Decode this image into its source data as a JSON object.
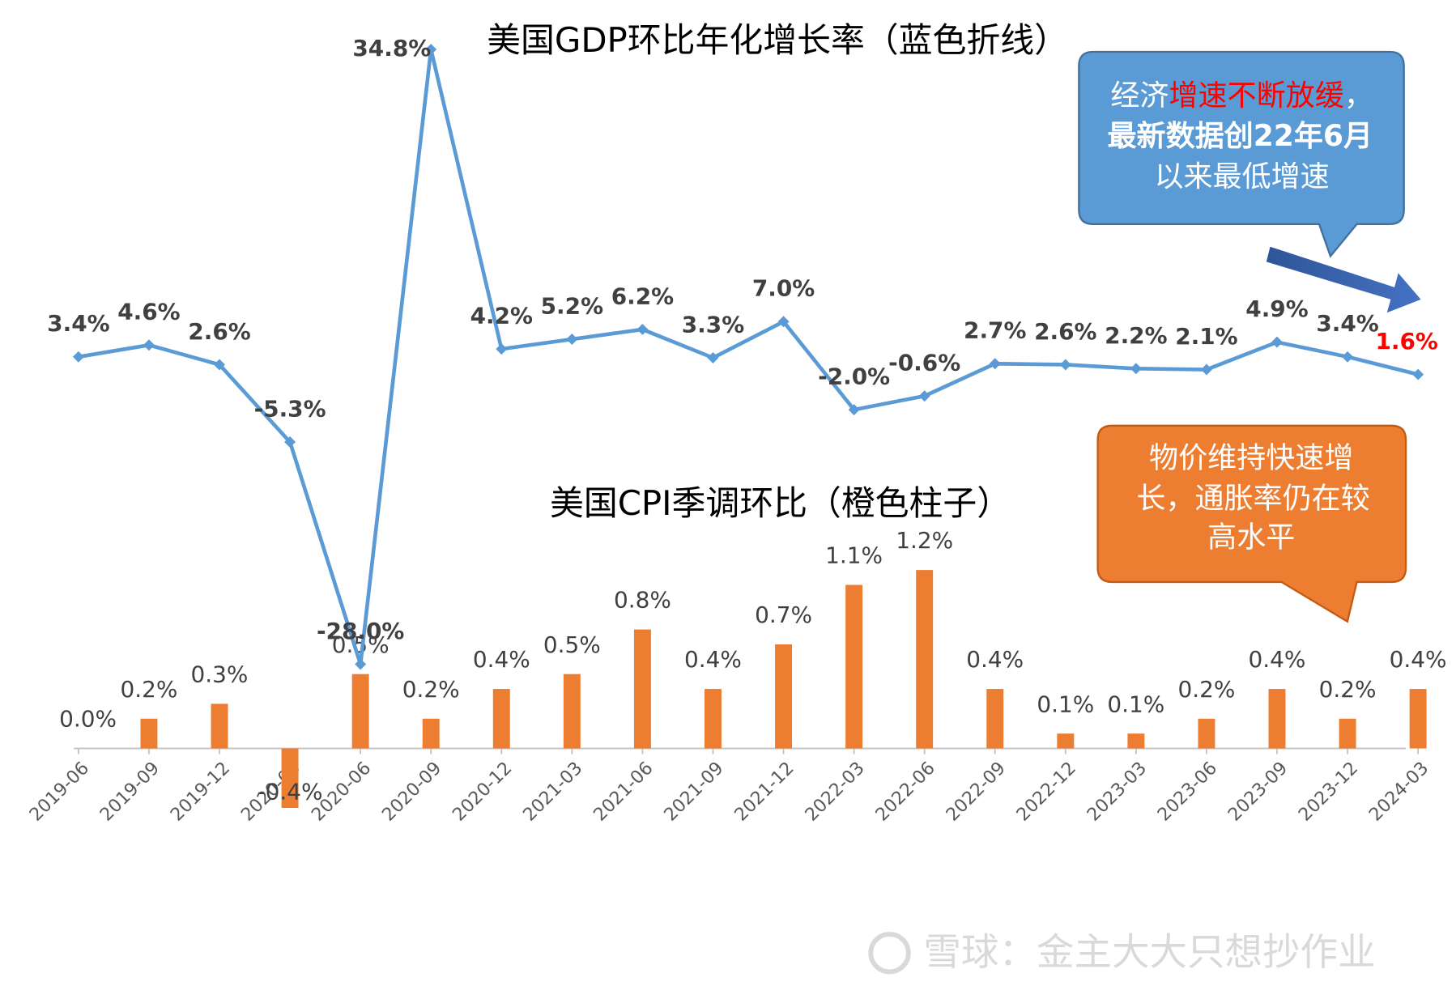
{
  "chart_data": {
    "type": "bar_line",
    "title": "美国GDP环比年化增长率（蓝色折线）",
    "subtitle": "美国CPI季调环比（橙色柱子）",
    "categories": [
      "2019-06",
      "2019-09",
      "2019-12",
      "2020-03",
      "2020-06",
      "2020-09",
      "2020-12",
      "2021-03",
      "2021-06",
      "2021-09",
      "2021-12",
      "2022-03",
      "2022-06",
      "2022-09",
      "2022-12",
      "2023-03",
      "2023-06",
      "2023-09",
      "2023-12",
      "2024-03"
    ],
    "ylim": [
      -0.54,
      4.78
    ],
    "y2lim": [
      -44.8,
      36
    ],
    "series": [
      {
        "name": "美国CPI季调环比",
        "type": "bar",
        "color": "#ed7d31",
        "values": [
          0.0,
          0.2,
          0.3,
          -0.4,
          0.5,
          0.2,
          0.4,
          0.5,
          0.8,
          0.4,
          0.7,
          1.1,
          1.2,
          0.4,
          0.1,
          0.1,
          0.2,
          0.4,
          0.2,
          0.4
        ],
        "value_labels": [
          "0.0%",
          "0.2%",
          "0.3%",
          "-0.4%",
          "0.5%",
          "0.2%",
          "0.4%",
          "0.5%",
          "0.8%",
          "0.4%",
          "0.7%",
          "1.1%",
          "1.2%",
          "0.4%",
          "0.1%",
          "0.1%",
          "0.2%",
          "0.4%",
          "0.2%",
          "0.4%"
        ]
      },
      {
        "name": "美国GDP环比年化增长率",
        "type": "line",
        "axis": "y2",
        "color": "#5b9bd5",
        "last_label_color": "#ff0000",
        "values": [
          3.4,
          4.6,
          2.6,
          -5.3,
          -28.0,
          34.8,
          4.2,
          5.2,
          6.2,
          3.3,
          7.0,
          -2.0,
          -0.6,
          2.7,
          2.6,
          2.2,
          2.1,
          4.9,
          3.4,
          1.6
        ],
        "value_labels": [
          "3.4%",
          "4.6%",
          "2.6%",
          "-5.3%",
          "-28.0%",
          "34.8%",
          "4.2%",
          "5.2%",
          "6.2%",
          "3.3%",
          "7.0%",
          "-2.0%",
          "-0.6%",
          "2.7%",
          "2.6%",
          "2.2%",
          "2.1%",
          "4.9%",
          "3.4%",
          "1.6%"
        ]
      }
    ],
    "annotations": {
      "gdp_callout": {
        "line1": [
          "经济",
          "增速不断放缓",
          "，"
        ],
        "line2": "最新数据创22年6月",
        "line3": "以来最低增速"
      },
      "cpi_callout": {
        "line1": "物价维持快速增",
        "line2": "长，通胀率仍在较",
        "line3": "高水平"
      },
      "watermark": "雪球：金主大大只想抄作业"
    }
  }
}
